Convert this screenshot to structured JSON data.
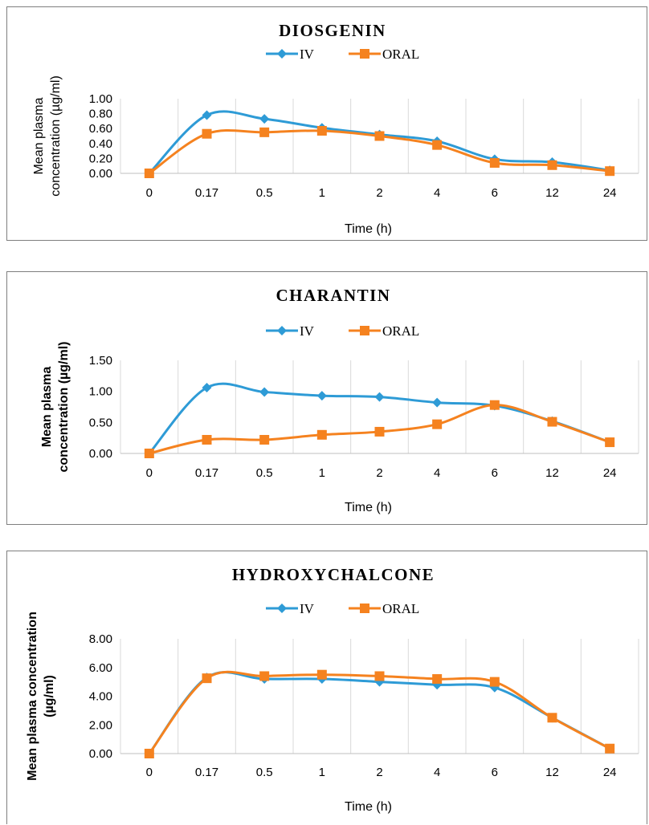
{
  "chart_data": [
    {
      "type": "line",
      "title": "DIOSGENIN",
      "categories": [
        "0",
        "0.17",
        "0.5",
        "1",
        "2",
        "4",
        "6",
        "12",
        "24"
      ],
      "series": [
        {
          "name": "IV",
          "values": [
            0.0,
            0.78,
            0.73,
            0.61,
            0.52,
            0.43,
            0.19,
            0.15,
            0.04
          ],
          "color": "#2e9bd6",
          "marker": "diamond"
        },
        {
          "name": "ORAL",
          "values": [
            0.0,
            0.53,
            0.55,
            0.57,
            0.5,
            0.38,
            0.14,
            0.11,
            0.03
          ],
          "color": "#f5821f",
          "marker": "square"
        }
      ],
      "yticks": [
        "0.00",
        "0.20",
        "0.40",
        "0.60",
        "0.80",
        "1.00"
      ],
      "ylim": [
        0,
        1
      ],
      "xlabel": "Time (h)",
      "ylabel_lines": [
        "Mean plasma",
        "concentration (µg/ml)"
      ],
      "legend": "top",
      "grid": "vertical"
    },
    {
      "type": "line",
      "title": "CHARANTIN",
      "categories": [
        "0",
        "0.17",
        "0.5",
        "1",
        "2",
        "4",
        "6",
        "12",
        "24"
      ],
      "series": [
        {
          "name": "IV",
          "values": [
            0.0,
            1.06,
            0.99,
            0.93,
            0.91,
            0.82,
            0.77,
            0.52,
            0.18
          ],
          "color": "#2e9bd6",
          "marker": "diamond"
        },
        {
          "name": "ORAL",
          "values": [
            0.0,
            0.22,
            0.22,
            0.3,
            0.35,
            0.47,
            0.78,
            0.51,
            0.18
          ],
          "color": "#f5821f",
          "marker": "square"
        }
      ],
      "yticks": [
        "0.00",
        "0.50",
        "1.00",
        "1.50"
      ],
      "ylim": [
        0,
        1.5
      ],
      "xlabel": "Time (h)",
      "ylabel_lines": [
        "Mean plasma",
        "concentration (µg/ml)"
      ],
      "legend": "top",
      "grid": "vertical"
    },
    {
      "type": "line",
      "title": "HYDROXYCHALCONE",
      "categories": [
        "0",
        "0.17",
        "0.5",
        "1",
        "2",
        "4",
        "6",
        "12",
        "24"
      ],
      "series": [
        {
          "name": "IV",
          "values": [
            0.0,
            5.3,
            5.2,
            5.2,
            5.0,
            4.8,
            4.6,
            2.5,
            0.35
          ],
          "color": "#2e9bd6",
          "marker": "diamond"
        },
        {
          "name": "ORAL",
          "values": [
            0.0,
            5.25,
            5.4,
            5.5,
            5.4,
            5.2,
            5.0,
            2.5,
            0.35
          ],
          "color": "#f5821f",
          "marker": "square"
        }
      ],
      "yticks": [
        "0.00",
        "2.00",
        "4.00",
        "6.00",
        "8.00"
      ],
      "ylim": [
        0,
        8
      ],
      "xlabel": "Time (h)",
      "ylabel_lines": [
        "Mean plasma concentration",
        "(µg/ml)"
      ],
      "legend": "top",
      "grid": "vertical"
    }
  ]
}
